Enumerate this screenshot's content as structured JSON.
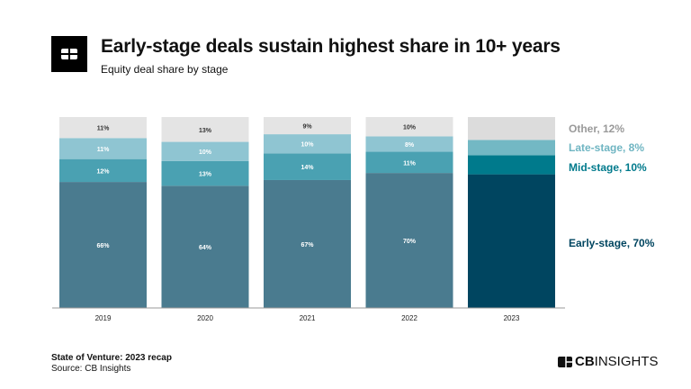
{
  "header": {
    "title": "Early-stage deals sustain highest share in 10+ years",
    "subtitle": "Equity deal share by stage"
  },
  "footer": {
    "report": "State of Venture: 2023 recap",
    "source": "Source: CB Insights",
    "brand_bold": "CB",
    "brand_light": "INSIGHTS"
  },
  "chart_data": {
    "type": "bar",
    "stacked": true,
    "categories": [
      "2019",
      "2020",
      "2021",
      "2022",
      "2023"
    ],
    "ylim": [
      0,
      100
    ],
    "grid": false,
    "legend_placement": "right",
    "series": [
      {
        "name": "Early-stage",
        "values": [
          66,
          64,
          67,
          70,
          70
        ],
        "labels": [
          "66%",
          "64%",
          "67%",
          "70%",
          ""
        ],
        "color": "#4a7b8f",
        "highlight_color": "#004560",
        "legend": "Early-stage, 70%"
      },
      {
        "name": "Mid-stage",
        "values": [
          12,
          13,
          14,
          11,
          10
        ],
        "labels": [
          "12%",
          "13%",
          "14%",
          "11%",
          ""
        ],
        "color": "#4aa1b2",
        "highlight_color": "#007a8c",
        "legend": "Mid-stage, 10%"
      },
      {
        "name": "Late-stage",
        "values": [
          11,
          10,
          10,
          8,
          8
        ],
        "labels": [
          "11%",
          "10%",
          "10%",
          "8%",
          ""
        ],
        "color": "#8fc5d2",
        "highlight_color": "#73b8c4",
        "legend": "Late-stage, 8%"
      },
      {
        "name": "Other",
        "values": [
          11,
          13,
          9,
          10,
          12
        ],
        "labels": [
          "11%",
          "13%",
          "9%",
          "10%",
          ""
        ],
        "color": "#e4e4e4",
        "highlight_color": "#dcdcdc",
        "legend": "Other, 12%"
      }
    ],
    "legend_colors": [
      "#004560",
      "#007a8c",
      "#6fb5c2",
      "#9a9a9a"
    ]
  }
}
